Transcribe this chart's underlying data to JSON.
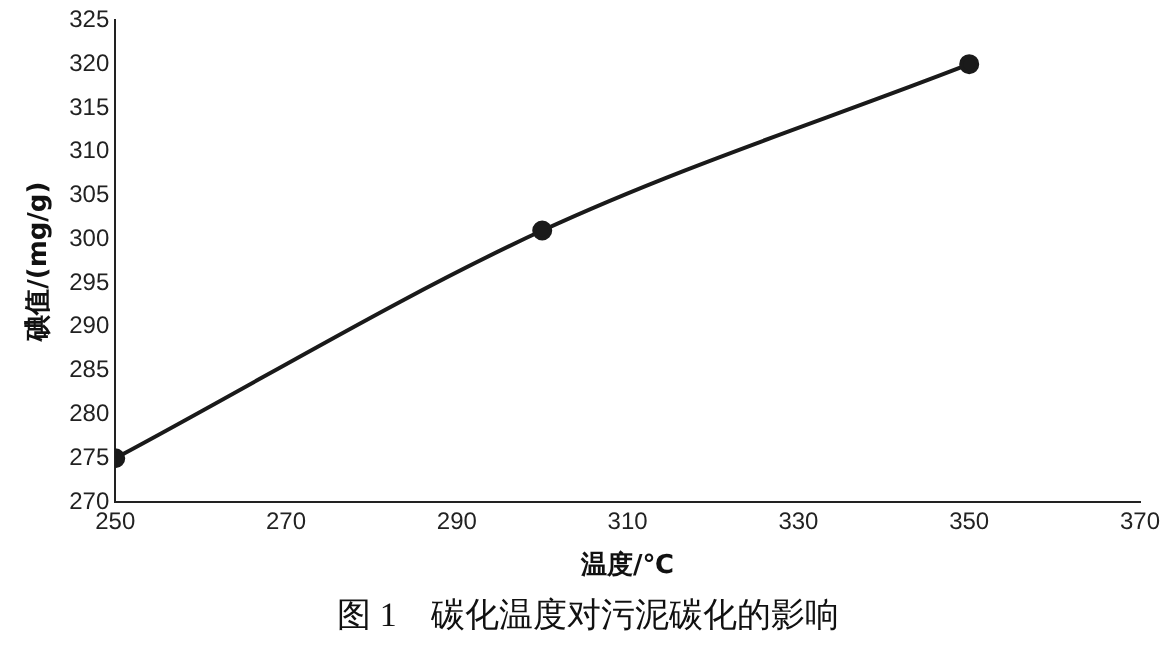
{
  "chart_data": {
    "type": "line",
    "xlabel": "温度/℃",
    "ylabel": "碘值/(mg/g)",
    "x": [
      250,
      300,
      350
    ],
    "series": [
      {
        "color": "#1a1a1a",
        "values": [
          275,
          301,
          320
        ]
      }
    ],
    "xlim": [
      250,
      370
    ],
    "xticks": [
      250,
      270,
      290,
      310,
      330,
      350,
      370
    ],
    "ylim": [
      270,
      325
    ],
    "yticks": [
      270,
      275,
      280,
      285,
      290,
      295,
      300,
      305,
      310,
      315,
      320,
      325
    ],
    "grid": false,
    "legend": false,
    "marker": "circle",
    "line_style": "solid",
    "annotations": [
      "图 1　碳化温度对污泥碳化的影响"
    ]
  }
}
